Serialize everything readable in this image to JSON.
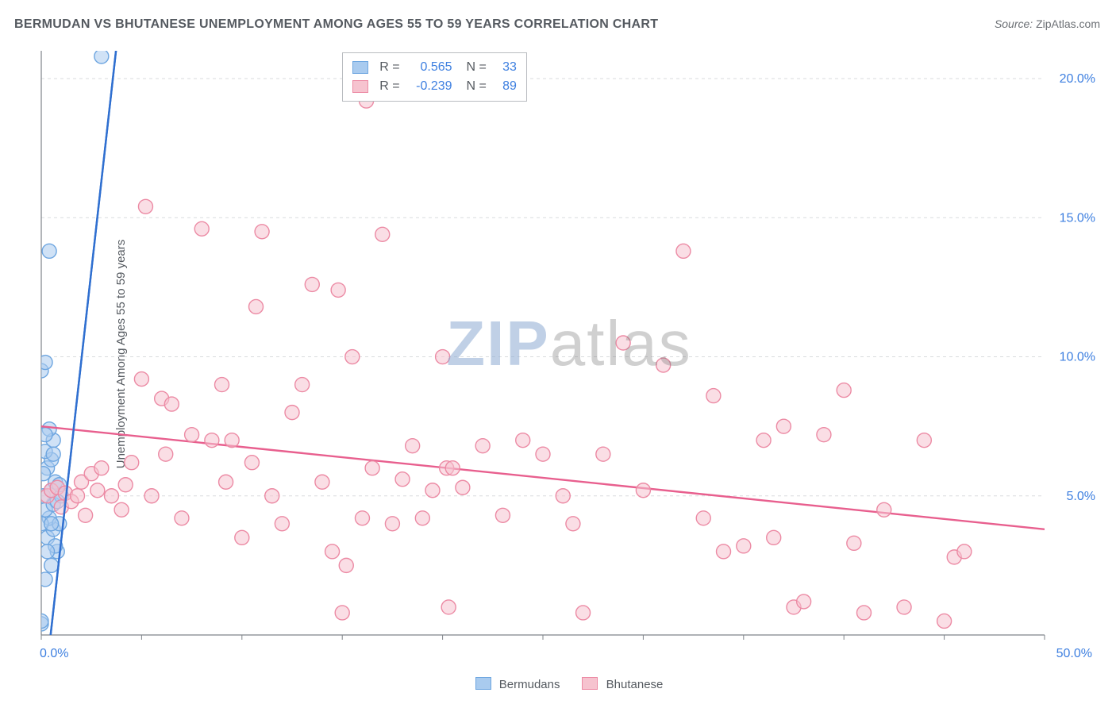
{
  "title": "BERMUDAN VS BHUTANESE UNEMPLOYMENT AMONG AGES 55 TO 59 YEARS CORRELATION CHART",
  "source_label": "Source:",
  "source_value": "ZipAtlas.com",
  "ylabel": "Unemployment Among Ages 55 to 59 years",
  "watermark": {
    "part1": "ZIP",
    "part2": "atlas"
  },
  "chart": {
    "type": "scatter",
    "background_color": "#ffffff",
    "grid_color": "#d9dbdd",
    "grid_dash": "4 4",
    "axis_color": "#7f848a",
    "tick_color": "#7f848a",
    "tick_length": 6,
    "xlim": [
      0,
      50
    ],
    "ylim": [
      0,
      21
    ],
    "xtick_step": 5,
    "ytick_step": 5,
    "y_gridlines": [
      5,
      10,
      15,
      20
    ],
    "xlabel_0": "0.0%",
    "xlabel_max": "50.0%",
    "ylabel_ticks": [
      "5.0%",
      "10.0%",
      "15.0%",
      "20.0%"
    ],
    "label_color": "#3d7fe0",
    "label_fontsize": 16,
    "marker_radius": 9,
    "marker_stroke_width": 1.4,
    "trend_width": 2.4,
    "trend_dash_ext": "5 5",
    "series": {
      "bermudans": {
        "label": "Bermudans",
        "color": "#a9cbef",
        "stroke": "#6ea6e0",
        "trend_color": "#2f6fd0",
        "R": "0.565",
        "N": "33",
        "trend": {
          "x1": 0.0,
          "y1": -3.0,
          "x2": 3.8,
          "y2": 21.5
        },
        "points": [
          [
            0.0,
            0.4
          ],
          [
            0.0,
            0.5
          ],
          [
            0.2,
            2.0
          ],
          [
            0.3,
            3.5
          ],
          [
            0.6,
            3.8
          ],
          [
            0.4,
            4.2
          ],
          [
            0.2,
            4.5
          ],
          [
            0.6,
            4.7
          ],
          [
            0.1,
            5.0
          ],
          [
            0.5,
            5.2
          ],
          [
            0.7,
            5.5
          ],
          [
            0.3,
            6.0
          ],
          [
            0.5,
            6.3
          ],
          [
            0.2,
            6.6
          ],
          [
            0.6,
            7.0
          ],
          [
            0.4,
            7.4
          ],
          [
            0.8,
            3.0
          ],
          [
            0.9,
            4.0
          ],
          [
            1.0,
            5.0
          ],
          [
            0.0,
            9.5
          ],
          [
            0.2,
            9.8
          ],
          [
            0.4,
            13.8
          ],
          [
            3.0,
            20.8
          ],
          [
            0.5,
            2.5
          ],
          [
            0.7,
            3.2
          ],
          [
            0.1,
            5.8
          ],
          [
            0.3,
            3.0
          ],
          [
            0.6,
            6.5
          ],
          [
            0.8,
            4.8
          ],
          [
            0.2,
            7.2
          ],
          [
            0.0,
            4.0
          ],
          [
            0.9,
            5.4
          ],
          [
            0.5,
            4.0
          ]
        ]
      },
      "bhutanese": {
        "label": "Bhutanese",
        "color": "#f6c3cf",
        "stroke": "#ec8aa4",
        "trend_color": "#e85f8e",
        "R": "-0.239",
        "N": "89",
        "trend": {
          "x1": 0.0,
          "y1": 7.5,
          "x2": 50.0,
          "y2": 3.8
        },
        "points": [
          [
            0.3,
            5.0
          ],
          [
            0.5,
            5.2
          ],
          [
            0.8,
            5.3
          ],
          [
            1.0,
            4.6
          ],
          [
            1.2,
            5.1
          ],
          [
            1.5,
            4.8
          ],
          [
            1.8,
            5.0
          ],
          [
            2.0,
            5.5
          ],
          [
            2.2,
            4.3
          ],
          [
            2.5,
            5.8
          ],
          [
            2.8,
            5.2
          ],
          [
            3.0,
            6.0
          ],
          [
            3.5,
            5.0
          ],
          [
            4.0,
            4.5
          ],
          [
            4.2,
            5.4
          ],
          [
            4.5,
            6.2
          ],
          [
            5.0,
            9.2
          ],
          [
            5.2,
            15.4
          ],
          [
            5.5,
            5.0
          ],
          [
            6.0,
            8.5
          ],
          [
            6.2,
            6.5
          ],
          [
            6.5,
            8.3
          ],
          [
            7.0,
            4.2
          ],
          [
            7.5,
            7.2
          ],
          [
            8.0,
            14.6
          ],
          [
            8.5,
            7.0
          ],
          [
            9.0,
            9.0
          ],
          [
            9.2,
            5.5
          ],
          [
            9.5,
            7.0
          ],
          [
            10.0,
            3.5
          ],
          [
            10.5,
            6.2
          ],
          [
            10.7,
            11.8
          ],
          [
            11.0,
            14.5
          ],
          [
            11.5,
            5.0
          ],
          [
            12.0,
            4.0
          ],
          [
            12.5,
            8.0
          ],
          [
            13.0,
            9.0
          ],
          [
            13.5,
            12.6
          ],
          [
            14.0,
            5.5
          ],
          [
            14.5,
            3.0
          ],
          [
            14.8,
            12.4
          ],
          [
            15.0,
            0.8
          ],
          [
            15.2,
            2.5
          ],
          [
            15.5,
            10.0
          ],
          [
            16.0,
            4.2
          ],
          [
            16.2,
            19.2
          ],
          [
            16.5,
            6.0
          ],
          [
            17.0,
            14.4
          ],
          [
            17.5,
            4.0
          ],
          [
            18.0,
            5.6
          ],
          [
            18.5,
            6.8
          ],
          [
            19.0,
            4.2
          ],
          [
            19.5,
            5.2
          ],
          [
            20.0,
            10.0
          ],
          [
            20.2,
            6.0
          ],
          [
            20.3,
            1.0
          ],
          [
            20.5,
            6.0
          ],
          [
            21.0,
            5.3
          ],
          [
            22.0,
            6.8
          ],
          [
            23.0,
            4.3
          ],
          [
            24.0,
            7.0
          ],
          [
            25.0,
            6.5
          ],
          [
            26.0,
            5.0
          ],
          [
            26.5,
            4.0
          ],
          [
            27.0,
            0.8
          ],
          [
            28.0,
            6.5
          ],
          [
            29.0,
            10.5
          ],
          [
            30.0,
            5.2
          ],
          [
            31.0,
            9.7
          ],
          [
            32.0,
            13.8
          ],
          [
            33.0,
            4.2
          ],
          [
            33.5,
            8.6
          ],
          [
            34.0,
            3.0
          ],
          [
            35.0,
            3.2
          ],
          [
            36.0,
            7.0
          ],
          [
            36.5,
            3.5
          ],
          [
            37.0,
            7.5
          ],
          [
            37.5,
            1.0
          ],
          [
            38.0,
            1.2
          ],
          [
            39.0,
            7.2
          ],
          [
            40.0,
            8.8
          ],
          [
            40.5,
            3.3
          ],
          [
            41.0,
            0.8
          ],
          [
            42.0,
            4.5
          ],
          [
            43.0,
            1.0
          ],
          [
            44.0,
            7.0
          ],
          [
            45.0,
            0.5
          ],
          [
            45.5,
            2.8
          ],
          [
            46.0,
            3.0
          ]
        ]
      }
    }
  },
  "statbox": {
    "R_label": "R =",
    "N_label": "N ="
  },
  "x_legend": {
    "items": [
      {
        "key": "bermudans"
      },
      {
        "key": "bhutanese"
      }
    ]
  }
}
